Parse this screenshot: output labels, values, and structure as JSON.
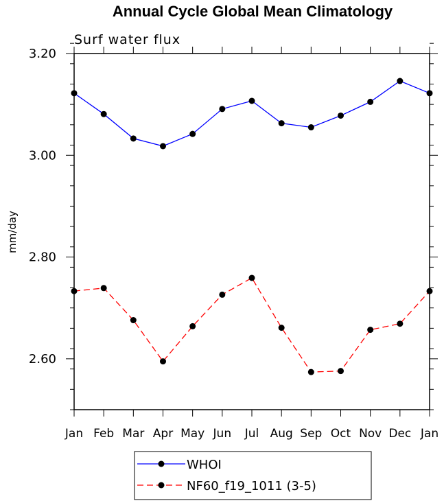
{
  "chart_data": {
    "type": "line",
    "title": "Annual Cycle Global Mean Climatology",
    "subtitle": "Surf water flux",
    "ylabel": "mm/day",
    "xlabel": "",
    "categories": [
      "Jan",
      "Feb",
      "Mar",
      "Apr",
      "May",
      "Jun",
      "Jul",
      "Aug",
      "Sep",
      "Oct",
      "Nov",
      "Dec",
      "Jan"
    ],
    "ylim": [
      2.5,
      3.2
    ],
    "yticks": [
      2.6,
      2.8,
      3.0,
      3.2
    ],
    "ytick_labels": [
      "2.60",
      "2.80",
      "3.00",
      "3.20"
    ],
    "legend_position": "bottom-center",
    "series": [
      {
        "name": "WHOI",
        "color": "#0000ff",
        "line_style": "solid",
        "marker": "filled-circle",
        "values": [
          3.122,
          3.081,
          3.033,
          3.018,
          3.042,
          3.091,
          3.107,
          3.063,
          3.055,
          3.078,
          3.105,
          3.146,
          3.122
        ]
      },
      {
        "name": "NF60_f19_1011 (3-5)",
        "color": "#ff0000",
        "line_style": "dashed",
        "marker": "filled-circle",
        "values": [
          2.733,
          2.739,
          2.676,
          2.595,
          2.664,
          2.726,
          2.759,
          2.661,
          2.574,
          2.576,
          2.657,
          2.669,
          2.733
        ]
      }
    ]
  }
}
